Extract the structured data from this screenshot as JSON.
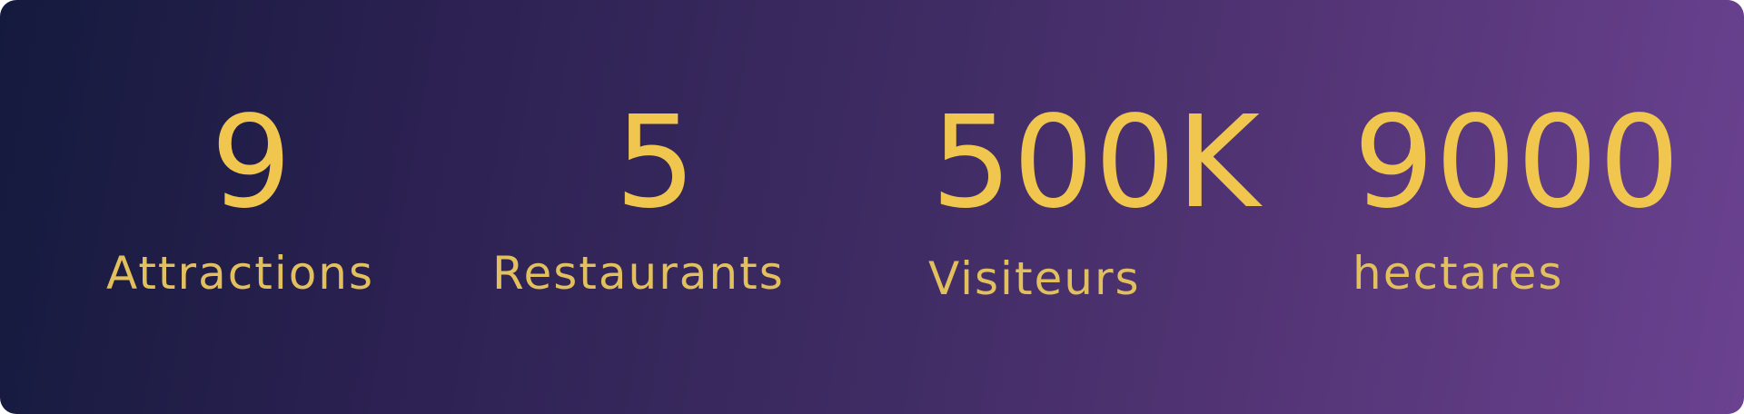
{
  "stats": {
    "items": [
      {
        "value": "9",
        "label": "Attractions"
      },
      {
        "value": "5",
        "label": "Restaurants"
      },
      {
        "value": "500K",
        "label": "Visiteurs"
      },
      {
        "value": "9000",
        "label": "hectares"
      }
    ]
  },
  "colors": {
    "gradient_start": "#141a3d",
    "gradient_end": "#6a4290",
    "value_text": "#f0c64f",
    "label_text": "#e3c05e"
  }
}
